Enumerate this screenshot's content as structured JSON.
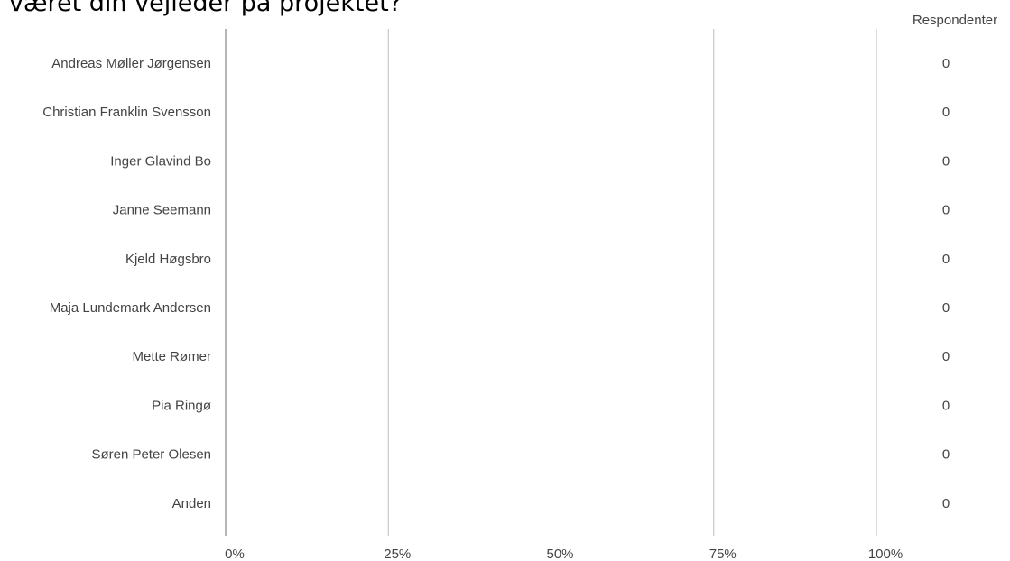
{
  "question": "været din vejleder på projektet?",
  "chart_data": {
    "type": "bar",
    "orientation": "horizontal",
    "categories": [
      "Andreas Møller Jørgensen",
      "Christian Franklin Svensson",
      "Inger Glavind Bo",
      "Janne Seemann",
      "Kjeld Høgsbro",
      "Maja Lundemark Andersen",
      "Mette Rømer",
      "Pia Ringø",
      "Søren Peter Olesen",
      "Anden"
    ],
    "values": [
      0,
      0,
      0,
      0,
      0,
      0,
      0,
      0,
      0,
      0
    ],
    "value_unit": "percent",
    "xlim": [
      0,
      100
    ],
    "x_ticks": [
      "0%",
      "25%",
      "50%",
      "75%",
      "100%"
    ],
    "count_header": "Respondenter",
    "counts": [
      0,
      0,
      0,
      0,
      0,
      0,
      0,
      0,
      0,
      0
    ],
    "grid": true,
    "colors": {
      "bar": "#3b78e7",
      "grid": "#bdbdbd",
      "axis": "#9e9e9e",
      "text": "#444444"
    }
  }
}
